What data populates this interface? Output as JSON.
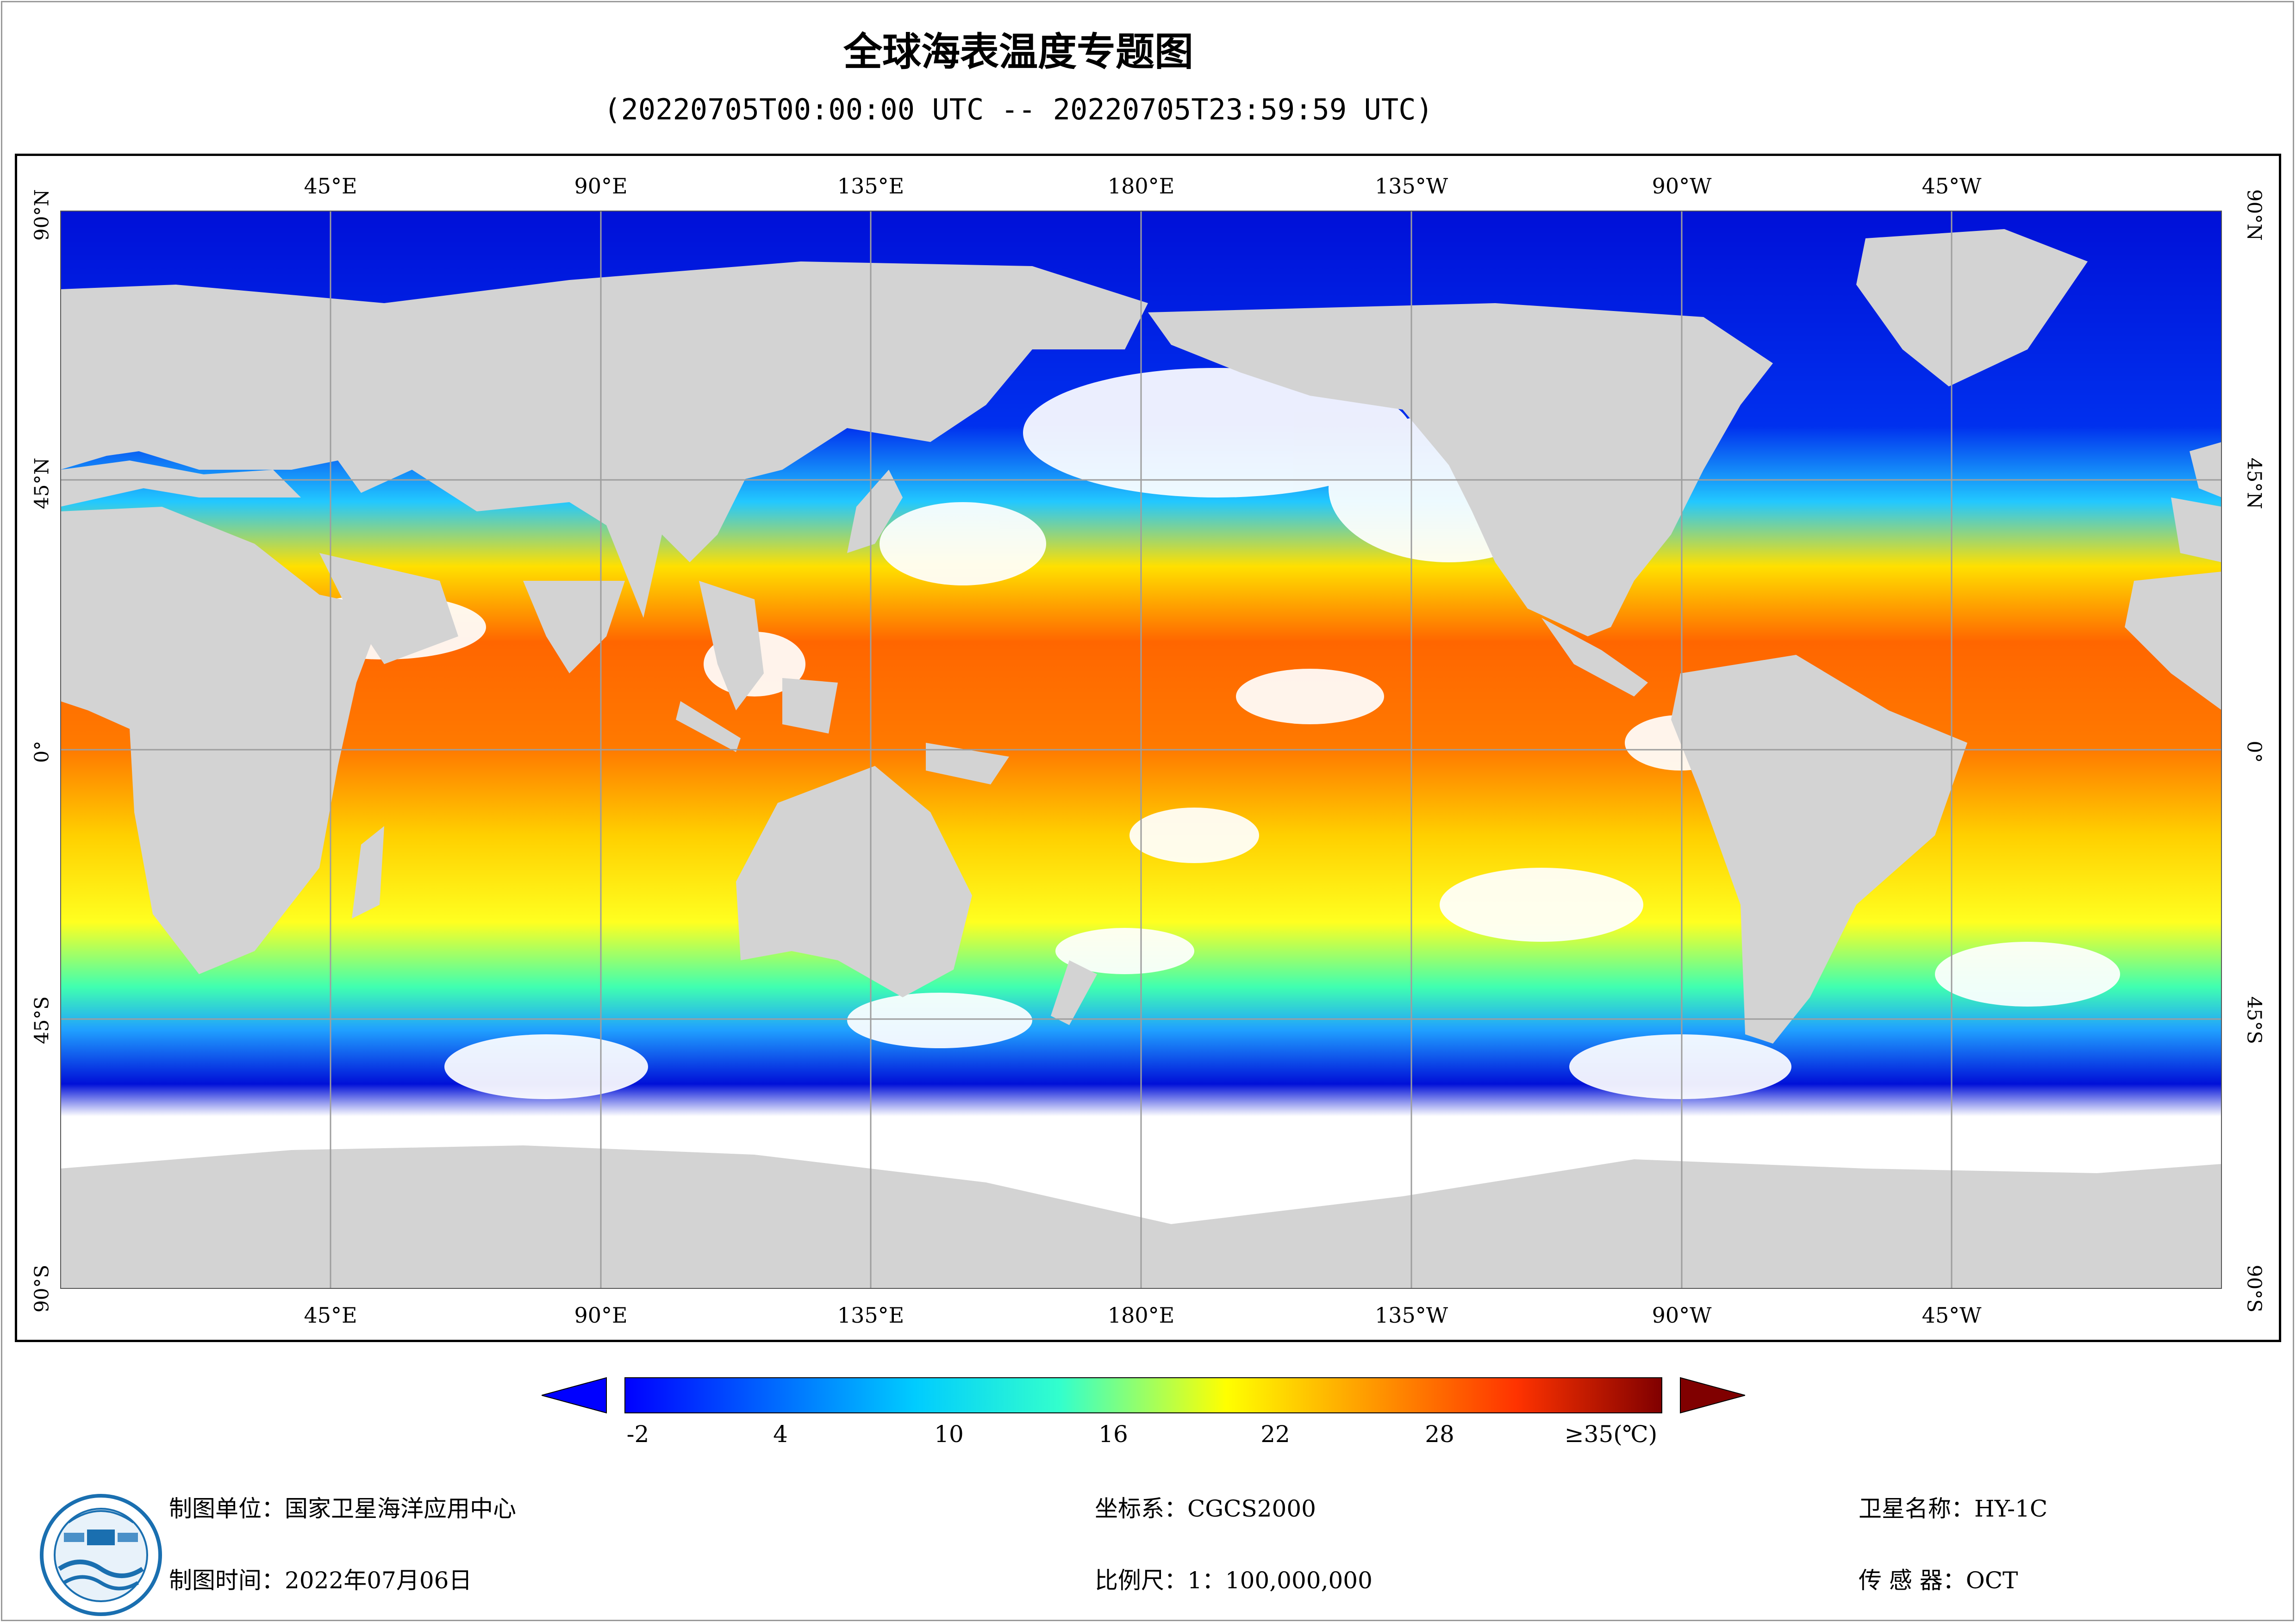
{
  "header": {
    "title": "全球海表温度专题图",
    "subtitle": "(20220705T00:00:00 UTC -- 20220705T23:59:59 UTC)"
  },
  "map": {
    "lon_labels": [
      "45°E",
      "90°E",
      "135°E",
      "180°E",
      "135°W",
      "90°W",
      "45°W"
    ],
    "lat_labels": [
      "90°N",
      "45°N",
      "0°",
      "45°S",
      "90°S"
    ],
    "colors": {
      "land": "#d3d3d3",
      "no_data": "#ffffff",
      "grid": "#9e9e9e"
    }
  },
  "colorbar": {
    "tick_labels": [
      "-2",
      "4",
      "10",
      "16",
      "22",
      "28",
      "≥35(℃)"
    ],
    "colors": [
      "#0000ff",
      "#0066ff",
      "#00ccff",
      "#33ffcc",
      "#ffff00",
      "#ff9900",
      "#ff3300",
      "#800000"
    ]
  },
  "footer": {
    "unit": "制图单位：国家卫星海洋应用中心",
    "time": "制图时间：2022年07月06日",
    "crs": "坐标系：CGCS2000",
    "scale": "比例尺：1：100,000,000",
    "satellite": "卫星名称：HY-1C",
    "sensor": "传  感  器：OCT"
  },
  "logo": {
    "icon": "nsoas-logo-icon"
  }
}
